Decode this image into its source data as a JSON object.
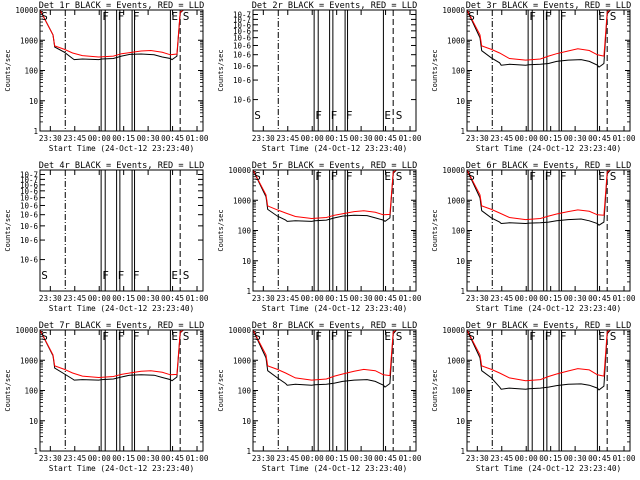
{
  "time_axis": {
    "start_label": "Start Time (24-Oct-12 23:23:40)",
    "tick_labels": [
      "23:30",
      "23:45",
      "00:00",
      "00:15",
      "00:30",
      "00:45",
      "01:00"
    ],
    "ticks_minutes": [
      6.33,
      21.33,
      36.33,
      51.33,
      66.33,
      81.33,
      96.33
    ],
    "xlim_minutes": [
      0,
      100
    ]
  },
  "ylabel": "Counts/sec",
  "markers": {
    "dashdot_x": [
      15.5
    ],
    "dashed_x": [
      86
    ],
    "solid_x": [
      37.5,
      40,
      47,
      49,
      56.5,
      58,
      80
    ],
    "letters": [
      {
        "text": "S",
        "x": 0.8
      },
      {
        "text": "F",
        "x": 38.2
      },
      {
        "text": "F",
        "x": 47.6
      },
      {
        "text": "F",
        "x": 57
      },
      {
        "text": "E",
        "x": 80.6
      },
      {
        "text": "S",
        "x": 87.6
      }
    ]
  },
  "chart_data": [
    {
      "type": "line",
      "title": "Det 1r BLACK = Events, RED = LLD",
      "yscale": "log",
      "ylim": [
        1,
        10000
      ],
      "y_tick_labels": [
        "1",
        "10",
        "100",
        "1000",
        "10000"
      ],
      "series": [
        {
          "name": "Events",
          "color": "#000000",
          "x": [
            0,
            8,
            9,
            15,
            20,
            21,
            26,
            36,
            38,
            45,
            50,
            55,
            62,
            70,
            75,
            80,
            81,
            84,
            86,
            88
          ],
          "y": [
            10000,
            1500,
            600,
            400,
            250,
            230,
            240,
            230,
            240,
            250,
            300,
            340,
            350,
            330,
            280,
            250,
            230,
            300,
            8000,
            10000
          ]
        },
        {
          "name": "LLD",
          "color": "#ff0000",
          "x": [
            0,
            8,
            9,
            15,
            20,
            26,
            36,
            45,
            50,
            55,
            62,
            68,
            75,
            80,
            84,
            86,
            88
          ],
          "y": [
            10000,
            1500,
            650,
            500,
            380,
            310,
            280,
            300,
            360,
            390,
            440,
            460,
            400,
            330,
            350,
            8500,
            10000
          ]
        }
      ]
    },
    {
      "type": "line",
      "title": "Det 2r BLACK = Events, RED = LLD",
      "yscale": "log",
      "ylim": [
        1e-07,
        1e-06
      ],
      "y_tick_labels": [
        "10-6",
        "10-6",
        "10-6",
        "10-6",
        "10-6",
        "10-6",
        "10-6",
        "10-6",
        "10-7",
        "10-7"
      ],
      "series": []
    },
    {
      "type": "line",
      "title": "Det 3r BLACK = Events, RED = LLD",
      "yscale": "log",
      "ylim": [
        1,
        10000
      ],
      "y_tick_labels": [
        "1",
        "10",
        "100",
        "1000",
        "10000"
      ],
      "series": [
        {
          "name": "Events",
          "color": "#000000",
          "x": [
            0,
            8,
            9,
            15,
            20,
            21,
            26,
            36,
            38,
            45,
            50,
            55,
            62,
            70,
            75,
            80,
            81,
            84,
            86,
            88
          ],
          "y": [
            10000,
            1200,
            450,
            260,
            180,
            150,
            160,
            150,
            155,
            160,
            170,
            200,
            220,
            230,
            200,
            150,
            130,
            170,
            7500,
            10000
          ]
        },
        {
          "name": "LLD",
          "color": "#ff0000",
          "x": [
            0,
            8,
            9,
            15,
            20,
            26,
            36,
            45,
            50,
            55,
            62,
            68,
            75,
            80,
            84,
            86,
            88
          ],
          "y": [
            10000,
            1500,
            650,
            500,
            380,
            250,
            220,
            240,
            300,
            360,
            440,
            520,
            460,
            330,
            300,
            8500,
            10000
          ]
        }
      ]
    },
    {
      "type": "line",
      "title": "Det 4r BLACK = Events, RED = LLD",
      "yscale": "log",
      "ylim": [
        1e-07,
        1e-06
      ],
      "y_tick_labels": [
        "10-6",
        "10-6",
        "10-6",
        "10-6",
        "10-6",
        "10-6",
        "10-6",
        "10-6",
        "10-7",
        "10-7"
      ],
      "series": []
    },
    {
      "type": "line",
      "title": "Det 5r BLACK = Events, RED = LLD",
      "yscale": "log",
      "ylim": [
        1,
        10000
      ],
      "y_tick_labels": [
        "1",
        "10",
        "100",
        "1000",
        "10000"
      ],
      "series": [
        {
          "name": "Events",
          "color": "#000000",
          "x": [
            0,
            8,
            9,
            15,
            20,
            21,
            26,
            36,
            38,
            45,
            50,
            55,
            62,
            70,
            75,
            80,
            81,
            84,
            86,
            88
          ],
          "y": [
            10000,
            1300,
            500,
            300,
            220,
            200,
            210,
            200,
            210,
            220,
            260,
            300,
            320,
            310,
            260,
            220,
            200,
            260,
            7800,
            10000
          ]
        },
        {
          "name": "LLD",
          "color": "#ff0000",
          "x": [
            0,
            8,
            9,
            15,
            20,
            26,
            36,
            45,
            50,
            55,
            62,
            68,
            75,
            80,
            84,
            86,
            88
          ],
          "y": [
            10000,
            1500,
            650,
            480,
            380,
            290,
            250,
            270,
            320,
            360,
            420,
            450,
            400,
            330,
            340,
            8500,
            10000
          ]
        }
      ]
    },
    {
      "type": "line",
      "title": "Det 6r BLACK = Events, RED = LLD",
      "yscale": "log",
      "ylim": [
        1,
        10000
      ],
      "y_tick_labels": [
        "1",
        "10",
        "100",
        "1000",
        "10000"
      ],
      "series": [
        {
          "name": "Events",
          "color": "#000000",
          "x": [
            0,
            8,
            9,
            15,
            20,
            21,
            26,
            36,
            38,
            45,
            50,
            55,
            62,
            70,
            75,
            80,
            81,
            84,
            86,
            88
          ],
          "y": [
            10000,
            1200,
            450,
            260,
            190,
            170,
            180,
            170,
            175,
            180,
            190,
            210,
            230,
            240,
            210,
            170,
            150,
            190,
            7500,
            10000
          ]
        },
        {
          "name": "LLD",
          "color": "#ff0000",
          "x": [
            0,
            8,
            9,
            15,
            20,
            26,
            36,
            45,
            50,
            55,
            62,
            68,
            75,
            80,
            84,
            86,
            88
          ],
          "y": [
            10000,
            1500,
            650,
            500,
            380,
            270,
            230,
            250,
            300,
            350,
            420,
            480,
            430,
            330,
            320,
            8500,
            10000
          ]
        }
      ]
    },
    {
      "type": "line",
      "title": "Det 7r BLACK = Events, RED = LLD",
      "yscale": "log",
      "ylim": [
        1,
        10000
      ],
      "y_tick_labels": [
        "1",
        "10",
        "100",
        "1000",
        "10000"
      ],
      "series": [
        {
          "name": "Events",
          "color": "#000000",
          "x": [
            0,
            8,
            9,
            15,
            20,
            21,
            26,
            36,
            38,
            45,
            50,
            55,
            62,
            70,
            75,
            80,
            81,
            84,
            86,
            88
          ],
          "y": [
            10000,
            1400,
            550,
            350,
            240,
            220,
            230,
            220,
            230,
            240,
            280,
            320,
            330,
            320,
            270,
            230,
            210,
            280,
            8000,
            10000
          ]
        },
        {
          "name": "LLD",
          "color": "#ff0000",
          "x": [
            0,
            8,
            9,
            15,
            20,
            26,
            36,
            45,
            50,
            55,
            62,
            68,
            75,
            80,
            84,
            86,
            88
          ],
          "y": [
            10000,
            1500,
            650,
            500,
            380,
            300,
            270,
            290,
            340,
            380,
            430,
            450,
            400,
            330,
            340,
            8500,
            10000
          ]
        }
      ]
    },
    {
      "type": "line",
      "title": "Det 8r BLACK = Events, RED = LLD",
      "yscale": "log",
      "ylim": [
        1,
        10000
      ],
      "y_tick_labels": [
        "1",
        "10",
        "100",
        "1000",
        "10000"
      ],
      "series": [
        {
          "name": "Events",
          "color": "#000000",
          "x": [
            0,
            8,
            9,
            15,
            20,
            21,
            26,
            36,
            38,
            45,
            50,
            55,
            62,
            70,
            75,
            80,
            81,
            84,
            86,
            88
          ],
          "y": [
            10000,
            1200,
            450,
            260,
            170,
            150,
            160,
            150,
            155,
            160,
            175,
            200,
            220,
            230,
            200,
            150,
            130,
            170,
            7500,
            10000
          ]
        },
        {
          "name": "LLD",
          "color": "#ff0000",
          "x": [
            0,
            8,
            9,
            15,
            20,
            26,
            36,
            45,
            50,
            55,
            62,
            68,
            75,
            80,
            84,
            86,
            88
          ],
          "y": [
            10000,
            1500,
            650,
            500,
            380,
            260,
            220,
            240,
            300,
            350,
            430,
            500,
            450,
            330,
            310,
            8500,
            10000
          ]
        }
      ]
    },
    {
      "type": "line",
      "title": "Det 9r BLACK = Events, RED = LLD",
      "yscale": "log",
      "ylim": [
        1,
        10000
      ],
      "y_tick_labels": [
        "1",
        "10",
        "100",
        "1000",
        "10000"
      ],
      "series": [
        {
          "name": "Events",
          "color": "#000000",
          "x": [
            0,
            8,
            9,
            15,
            20,
            21,
            26,
            36,
            38,
            45,
            50,
            55,
            62,
            70,
            75,
            80,
            81,
            84,
            86,
            88
          ],
          "y": [
            10000,
            1200,
            450,
            260,
            130,
            110,
            120,
            110,
            115,
            120,
            130,
            145,
            160,
            165,
            150,
            120,
            105,
            140,
            7500,
            10000
          ]
        },
        {
          "name": "LLD",
          "color": "#ff0000",
          "x": [
            0,
            8,
            9,
            15,
            20,
            26,
            36,
            45,
            50,
            55,
            62,
            68,
            75,
            80,
            84,
            86,
            88
          ],
          "y": [
            10000,
            1500,
            650,
            500,
            380,
            260,
            210,
            230,
            290,
            350,
            440,
            530,
            480,
            330,
            300,
            8500,
            10000
          ]
        }
      ]
    }
  ]
}
